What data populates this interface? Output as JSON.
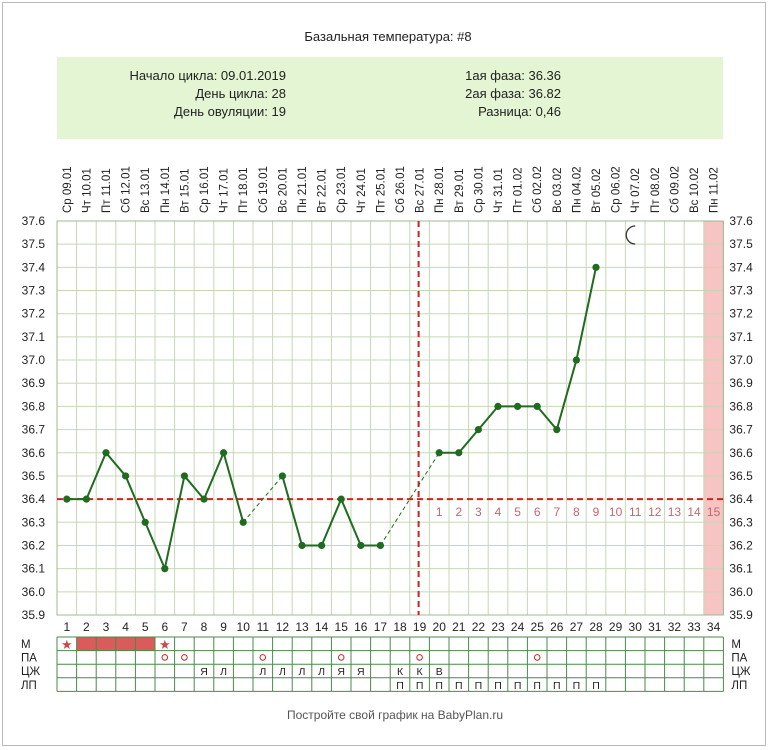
{
  "title": "Базальная температура: #8",
  "info": {
    "cycle_start": "Начало цикла: 09.01.2019",
    "cycle_day": "День цикла: 28",
    "ovulation_day": "День овуляции: 19",
    "phase1": "1ая фаза: 36.36",
    "phase2": "2ая фаза: 36.82",
    "difference": "Разница: 0,46"
  },
  "footer": "Постройте свой график на BabyPlan.ru",
  "colors": {
    "line": "#1f6b1f",
    "grid": "#c7d7b6",
    "info_bg": "#e4f5d4",
    "coverline": "#cc2222",
    "menses": "#d95b5b",
    "phase_num": "#c8646e",
    "highlight": "#f7c4c4"
  },
  "chart_data": {
    "type": "line",
    "title": "Базальная температура: #8",
    "dates": [
      "Ср 09.01",
      "Чт 10.01",
      "Пт 11.01",
      "Сб 12.01",
      "Вс 13.01",
      "Пн 14.01",
      "Вт 15.01",
      "Ср 16.01",
      "Чт 17.01",
      "Пт 18.01",
      "Сб 19.01",
      "Вс 20.01",
      "Пн 21.01",
      "Вт 22.01",
      "Ср 23.01",
      "Чт 24.01",
      "Пт 25.01",
      "Сб 26.01",
      "Вс 27.01",
      "Пн 28.01",
      "Вт 29.01",
      "Ср 30.01",
      "Чт 31.01",
      "Пт 01.02",
      "Сб 02.02",
      "Вс 03.02",
      "Пн 04.02",
      "Вт 05.02",
      "Ср 06.02",
      "Чт 07.02",
      "Пт 08.02",
      "Сб 09.02",
      "Вс 10.02",
      "Пн 11.02"
    ],
    "days": [
      1,
      2,
      3,
      4,
      5,
      6,
      7,
      8,
      9,
      10,
      11,
      12,
      13,
      14,
      15,
      16,
      17,
      18,
      19,
      20,
      21,
      22,
      23,
      24,
      25,
      26,
      27,
      28,
      29,
      30,
      31,
      32,
      33,
      34
    ],
    "temperatures": [
      36.4,
      36.4,
      36.6,
      36.5,
      36.3,
      36.1,
      36.5,
      36.4,
      36.6,
      36.3,
      null,
      36.5,
      36.2,
      36.2,
      36.4,
      36.2,
      36.2,
      null,
      null,
      36.6,
      36.6,
      36.7,
      36.8,
      36.8,
      36.8,
      36.7,
      37.0,
      37.4,
      null,
      null,
      null,
      null,
      null,
      null
    ],
    "y_ticks": [
      "35.9",
      "36.0",
      "36.1",
      "36.2",
      "36.3",
      "36.4",
      "36.5",
      "36.6",
      "36.7",
      "36.8",
      "36.9",
      "37.0",
      "37.1",
      "37.2",
      "37.3",
      "37.4",
      "37.5",
      "37.6"
    ],
    "ylim": [
      35.9,
      37.6
    ],
    "coverline": 36.4,
    "ovulation_day": 19,
    "luteal_days": [
      "1",
      "2",
      "3",
      "4",
      "5",
      "6",
      "7",
      "8",
      "9",
      "10",
      "11",
      "12",
      "13",
      "14",
      "15"
    ],
    "highlight_day": 34,
    "moon_day": 30,
    "rows": {
      "labels": [
        "М",
        "ПА",
        "ЦЖ",
        "ЛП"
      ],
      "m": {
        "stars": [
          1,
          6
        ],
        "flow_days": [
          2,
          3,
          4,
          5
        ]
      },
      "pa": [
        6,
        7,
        11,
        15,
        19,
        25
      ],
      "cm": [
        {
          "day": 8,
          "v": "Я"
        },
        {
          "day": 9,
          "v": "Л"
        },
        {
          "day": 11,
          "v": "Л"
        },
        {
          "day": 12,
          "v": "Л"
        },
        {
          "day": 13,
          "v": "Л"
        },
        {
          "day": 14,
          "v": "Л"
        },
        {
          "day": 15,
          "v": "Я"
        },
        {
          "day": 16,
          "v": "Я"
        },
        {
          "day": 18,
          "v": "К"
        },
        {
          "day": 19,
          "v": "К"
        },
        {
          "day": 20,
          "v": "В"
        }
      ],
      "lp": [
        18,
        19,
        20,
        21,
        22,
        23,
        24,
        25,
        26,
        27,
        28
      ],
      "lp_mark": "П"
    }
  }
}
